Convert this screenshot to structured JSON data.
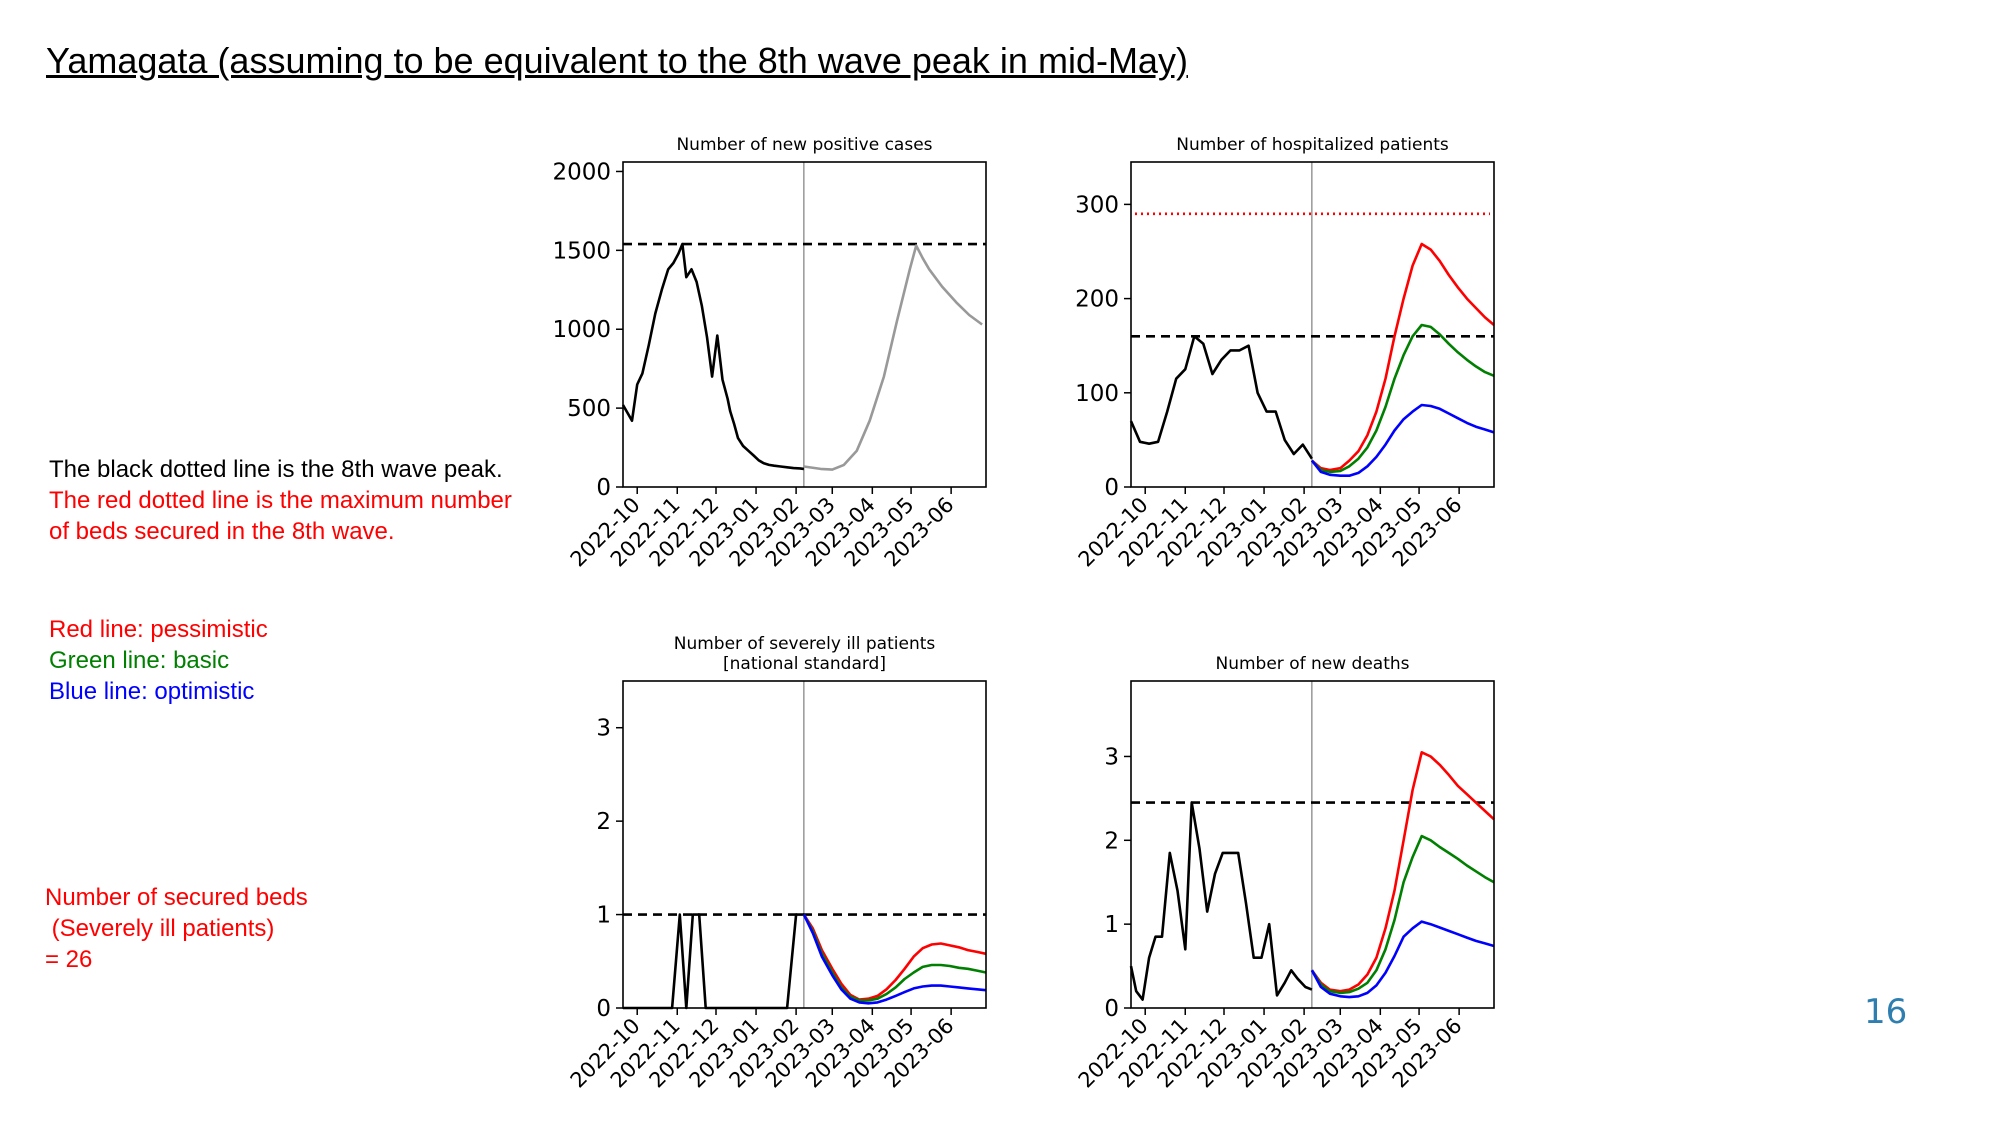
{
  "slide": {
    "title": "Yamagata (assuming to be equivalent to the 8th wave peak in mid-May)",
    "page_number": "16"
  },
  "notes": {
    "black_line": "The black dotted line is the 8th wave peak.",
    "red_line_1": "The red dotted line is the maximum number",
    "red_line_2": "of beds secured in the 8th wave.",
    "pessimistic": "Red line: pessimistic",
    "basic": "Green line: basic",
    "optimistic": "Blue line: optimistic",
    "secured_1": "Number of secured beds",
    "secured_2": " (Severely ill patients)",
    "secured_3": "= 26"
  },
  "colors": {
    "actual": "#000000",
    "projection": "#999999",
    "pessimistic": "#ff0000",
    "basic": "#008000",
    "optimistic": "#0000ff",
    "bed_limit": "#ff0000"
  },
  "chart_data": [
    {
      "type": "line",
      "title": [
        "Number of new positive cases"
      ],
      "xticks": [
        "2022-10",
        "2022-11",
        "2022-12",
        "2023-01",
        "2023-02",
        "2023-03",
        "2023-04",
        "2023-05",
        "2023-06"
      ],
      "ylim": [
        0,
        2060
      ],
      "yticks": [
        "0",
        "500",
        "1000",
        "1500",
        "2000"
      ],
      "vline": "2023-02-07",
      "reference_lines": [
        {
          "y": 1540,
          "style": "black-dashed"
        }
      ],
      "series": [
        {
          "color": "black",
          "x": [
            "2022-09-20",
            "2022-09-27",
            "2022-10-01",
            "2022-10-05",
            "2022-10-10",
            "2022-10-15",
            "2022-10-20",
            "2022-10-25",
            "2022-10-29",
            "2022-11-02",
            "2022-11-05",
            "2022-11-08",
            "2022-11-12",
            "2022-11-16",
            "2022-11-20",
            "2022-11-24",
            "2022-11-28",
            "2022-12-02",
            "2022-12-06",
            "2022-12-10",
            "2022-12-12",
            "2022-12-15",
            "2022-12-18",
            "2022-12-22",
            "2022-12-26",
            "2022-12-30",
            "2023-01-03",
            "2023-01-07",
            "2023-01-11",
            "2023-01-15",
            "2023-01-20",
            "2023-01-25",
            "2023-01-30",
            "2023-02-04",
            "2023-02-07"
          ],
          "y": [
            520,
            420,
            650,
            720,
            900,
            1100,
            1250,
            1380,
            1420,
            1480,
            1540,
            1330,
            1380,
            1300,
            1150,
            950,
            700,
            960,
            680,
            560,
            480,
            400,
            310,
            260,
            230,
            200,
            170,
            150,
            140,
            135,
            130,
            125,
            120,
            118,
            115
          ]
        },
        {
          "color": "gray",
          "x": [
            "2023-02-07",
            "2023-02-20",
            "2023-03-01",
            "2023-03-10",
            "2023-03-20",
            "2023-03-30",
            "2023-04-10",
            "2023-04-20",
            "2023-04-30",
            "2023-05-05",
            "2023-05-10",
            "2023-05-15",
            "2023-05-25",
            "2023-06-05",
            "2023-06-15",
            "2023-06-25"
          ],
          "y": [
            130,
            115,
            110,
            140,
            230,
            420,
            700,
            1050,
            1380,
            1530,
            1450,
            1380,
            1270,
            1170,
            1090,
            1030
          ]
        }
      ]
    },
    {
      "type": "line",
      "title": [
        "Number of hospitalized patients"
      ],
      "xticks": [
        "2022-10",
        "2022-11",
        "2022-12",
        "2023-01",
        "2023-02",
        "2023-03",
        "2023-04",
        "2023-05",
        "2023-06"
      ],
      "ylim": [
        0,
        345
      ],
      "yticks": [
        "0",
        "100",
        "200",
        "300"
      ],
      "vline": "2023-02-07",
      "reference_lines": [
        {
          "y": 160,
          "style": "black-dashed"
        },
        {
          "y": 290,
          "style": "red-dotted"
        }
      ],
      "series": [
        {
          "color": "black",
          "x": [
            "2022-09-20",
            "2022-09-27",
            "2022-10-04",
            "2022-10-11",
            "2022-10-18",
            "2022-10-25",
            "2022-11-01",
            "2022-11-08",
            "2022-11-15",
            "2022-11-22",
            "2022-11-29",
            "2022-12-06",
            "2022-12-13",
            "2022-12-20",
            "2022-12-27",
            "2023-01-03",
            "2023-01-10",
            "2023-01-17",
            "2023-01-24",
            "2023-01-31",
            "2023-02-07"
          ],
          "y": [
            70,
            48,
            46,
            48,
            80,
            115,
            125,
            160,
            152,
            120,
            135,
            145,
            145,
            150,
            100,
            80,
            80,
            50,
            35,
            45,
            30
          ]
        },
        {
          "color": "red",
          "x": [
            "2023-02-07",
            "2023-02-14",
            "2023-02-21",
            "2023-03-01",
            "2023-03-08",
            "2023-03-15",
            "2023-03-22",
            "2023-03-29",
            "2023-04-05",
            "2023-04-12",
            "2023-04-19",
            "2023-04-26",
            "2023-05-03",
            "2023-05-10",
            "2023-05-17",
            "2023-05-24",
            "2023-05-31",
            "2023-06-07",
            "2023-06-14",
            "2023-06-21",
            "2023-06-28"
          ],
          "y": [
            28,
            20,
            18,
            20,
            28,
            38,
            55,
            80,
            115,
            160,
            200,
            235,
            258,
            252,
            240,
            225,
            212,
            200,
            190,
            180,
            172
          ]
        },
        {
          "color": "green",
          "x": [
            "2023-02-07",
            "2023-02-14",
            "2023-02-21",
            "2023-03-01",
            "2023-03-08",
            "2023-03-15",
            "2023-03-22",
            "2023-03-29",
            "2023-04-05",
            "2023-04-12",
            "2023-04-19",
            "2023-04-26",
            "2023-05-03",
            "2023-05-10",
            "2023-05-17",
            "2023-05-24",
            "2023-05-31",
            "2023-06-07",
            "2023-06-14",
            "2023-06-21",
            "2023-06-28"
          ],
          "y": [
            28,
            18,
            16,
            17,
            22,
            30,
            42,
            60,
            85,
            115,
            140,
            160,
            172,
            170,
            162,
            152,
            143,
            135,
            128,
            122,
            118
          ]
        },
        {
          "color": "blue",
          "x": [
            "2023-02-07",
            "2023-02-14",
            "2023-02-21",
            "2023-03-01",
            "2023-03-08",
            "2023-03-15",
            "2023-03-22",
            "2023-03-29",
            "2023-04-05",
            "2023-04-12",
            "2023-04-19",
            "2023-04-26",
            "2023-05-03",
            "2023-05-10",
            "2023-05-17",
            "2023-05-24",
            "2023-05-31",
            "2023-06-07",
            "2023-06-14",
            "2023-06-21",
            "2023-06-28"
          ],
          "y": [
            28,
            16,
            13,
            12,
            12,
            15,
            22,
            32,
            45,
            60,
            72,
            80,
            87,
            86,
            83,
            78,
            73,
            68,
            64,
            61,
            58
          ]
        }
      ]
    },
    {
      "type": "line",
      "title": [
        "Number of severely ill patients",
        "[national standard]"
      ],
      "xticks": [
        "2022-10",
        "2022-11",
        "2022-12",
        "2023-01",
        "2023-02",
        "2023-03",
        "2023-04",
        "2023-05",
        "2023-06"
      ],
      "ylim": [
        0,
        3.5
      ],
      "yticks": [
        "0",
        "1",
        "2",
        "3"
      ],
      "vline": "2023-02-07",
      "reference_lines": [
        {
          "y": 1,
          "style": "black-dashed"
        }
      ],
      "series": [
        {
          "color": "black",
          "x": [
            "2022-09-20",
            "2022-10-01",
            "2022-10-15",
            "2022-10-28",
            "2022-11-03",
            "2022-11-08",
            "2022-11-13",
            "2022-11-18",
            "2022-11-23",
            "2022-11-28",
            "2022-12-10",
            "2022-12-25",
            "2023-01-10",
            "2023-01-25",
            "2023-02-01",
            "2023-02-07"
          ],
          "y": [
            0,
            0,
            0,
            0,
            1,
            0,
            1,
            1,
            0,
            0,
            0,
            0,
            0,
            0,
            1,
            1
          ]
        },
        {
          "color": "red",
          "x": [
            "2023-02-07",
            "2023-02-14",
            "2023-02-21",
            "2023-03-01",
            "2023-03-08",
            "2023-03-15",
            "2023-03-22",
            "2023-03-29",
            "2023-04-05",
            "2023-04-12",
            "2023-04-19",
            "2023-04-26",
            "2023-05-03",
            "2023-05-10",
            "2023-05-17",
            "2023-05-24",
            "2023-05-31",
            "2023-06-07",
            "2023-06-14",
            "2023-06-21",
            "2023-06-28"
          ],
          "y": [
            1,
            0.85,
            0.62,
            0.42,
            0.26,
            0.14,
            0.09,
            0.1,
            0.13,
            0.2,
            0.3,
            0.42,
            0.55,
            0.64,
            0.68,
            0.69,
            0.67,
            0.65,
            0.62,
            0.6,
            0.58
          ]
        },
        {
          "color": "green",
          "x": [
            "2023-02-07",
            "2023-02-14",
            "2023-02-21",
            "2023-03-01",
            "2023-03-08",
            "2023-03-15",
            "2023-03-22",
            "2023-03-29",
            "2023-04-05",
            "2023-04-12",
            "2023-04-19",
            "2023-04-26",
            "2023-05-03",
            "2023-05-10",
            "2023-05-17",
            "2023-05-24",
            "2023-05-31",
            "2023-06-07",
            "2023-06-14",
            "2023-06-21",
            "2023-06-28"
          ],
          "y": [
            1,
            0.82,
            0.58,
            0.38,
            0.22,
            0.12,
            0.08,
            0.08,
            0.1,
            0.15,
            0.22,
            0.31,
            0.38,
            0.44,
            0.46,
            0.46,
            0.45,
            0.43,
            0.42,
            0.4,
            0.38
          ]
        },
        {
          "color": "blue",
          "x": [
            "2023-02-07",
            "2023-02-14",
            "2023-02-21",
            "2023-03-01",
            "2023-03-08",
            "2023-03-15",
            "2023-03-22",
            "2023-03-29",
            "2023-04-05",
            "2023-04-12",
            "2023-04-19",
            "2023-04-26",
            "2023-05-03",
            "2023-05-10",
            "2023-05-17",
            "2023-05-24",
            "2023-05-31",
            "2023-06-07",
            "2023-06-14",
            "2023-06-21",
            "2023-06-28"
          ],
          "y": [
            1,
            0.8,
            0.55,
            0.35,
            0.2,
            0.1,
            0.06,
            0.05,
            0.06,
            0.09,
            0.13,
            0.17,
            0.21,
            0.23,
            0.24,
            0.24,
            0.23,
            0.22,
            0.21,
            0.2,
            0.19
          ]
        }
      ]
    },
    {
      "type": "line",
      "title": [
        "Number of new deaths"
      ],
      "xticks": [
        "2022-10",
        "2022-11",
        "2022-12",
        "2023-01",
        "2023-02",
        "2023-03",
        "2023-04",
        "2023-05",
        "2023-06"
      ],
      "ylim": [
        0,
        3.9
      ],
      "yticks": [
        "0",
        "1",
        "2",
        "3"
      ],
      "vline": "2023-02-07",
      "reference_lines": [
        {
          "y": 2.45,
          "style": "black-dashed"
        }
      ],
      "series": [
        {
          "color": "black",
          "x": [
            "2022-09-20",
            "2022-09-24",
            "2022-09-29",
            "2022-10-04",
            "2022-10-09",
            "2022-10-14",
            "2022-10-20",
            "2022-10-26",
            "2022-11-01",
            "2022-11-06",
            "2022-11-12",
            "2022-11-18",
            "2022-11-24",
            "2022-11-30",
            "2022-12-06",
            "2022-12-12",
            "2022-12-18",
            "2022-12-24",
            "2022-12-30",
            "2023-01-05",
            "2023-01-11",
            "2023-01-17",
            "2023-01-22",
            "2023-01-27",
            "2023-02-02",
            "2023-02-07"
          ],
          "y": [
            0.5,
            0.2,
            0.1,
            0.6,
            0.85,
            0.85,
            1.85,
            1.4,
            0.7,
            2.45,
            1.9,
            1.15,
            1.6,
            1.85,
            1.85,
            1.85,
            1.25,
            0.6,
            0.6,
            1.0,
            0.15,
            0.3,
            0.45,
            0.35,
            0.25,
            0.22
          ]
        },
        {
          "color": "red",
          "x": [
            "2023-02-07",
            "2023-02-14",
            "2023-02-21",
            "2023-03-01",
            "2023-03-08",
            "2023-03-15",
            "2023-03-22",
            "2023-03-29",
            "2023-04-05",
            "2023-04-12",
            "2023-04-19",
            "2023-04-26",
            "2023-05-03",
            "2023-05-10",
            "2023-05-17",
            "2023-05-24",
            "2023-05-31",
            "2023-06-07",
            "2023-06-14",
            "2023-06-21",
            "2023-06-28"
          ],
          "y": [
            0.45,
            0.3,
            0.22,
            0.2,
            0.22,
            0.28,
            0.4,
            0.6,
            0.95,
            1.4,
            2.0,
            2.6,
            3.05,
            3.0,
            2.9,
            2.78,
            2.65,
            2.55,
            2.45,
            2.35,
            2.25
          ]
        },
        {
          "color": "green",
          "x": [
            "2023-02-07",
            "2023-02-14",
            "2023-02-21",
            "2023-03-01",
            "2023-03-08",
            "2023-03-15",
            "2023-03-22",
            "2023-03-29",
            "2023-04-05",
            "2023-04-12",
            "2023-04-19",
            "2023-04-26",
            "2023-05-03",
            "2023-05-10",
            "2023-05-17",
            "2023-05-24",
            "2023-05-31",
            "2023-06-07",
            "2023-06-14",
            "2023-06-21",
            "2023-06-28"
          ],
          "y": [
            0.45,
            0.28,
            0.2,
            0.18,
            0.19,
            0.23,
            0.3,
            0.45,
            0.7,
            1.05,
            1.5,
            1.8,
            2.05,
            2.0,
            1.92,
            1.85,
            1.78,
            1.7,
            1.63,
            1.56,
            1.5
          ]
        },
        {
          "color": "blue",
          "x": [
            "2023-02-07",
            "2023-02-14",
            "2023-02-21",
            "2023-03-01",
            "2023-03-08",
            "2023-03-15",
            "2023-03-22",
            "2023-03-29",
            "2023-04-05",
            "2023-04-12",
            "2023-04-19",
            "2023-04-26",
            "2023-05-03",
            "2023-05-10",
            "2023-05-17",
            "2023-05-24",
            "2023-05-31",
            "2023-06-07",
            "2023-06-14",
            "2023-06-21",
            "2023-06-28"
          ],
          "y": [
            0.45,
            0.25,
            0.17,
            0.14,
            0.13,
            0.14,
            0.18,
            0.27,
            0.42,
            0.62,
            0.85,
            0.95,
            1.03,
            1.0,
            0.96,
            0.92,
            0.88,
            0.84,
            0.8,
            0.77,
            0.74
          ]
        }
      ]
    }
  ]
}
